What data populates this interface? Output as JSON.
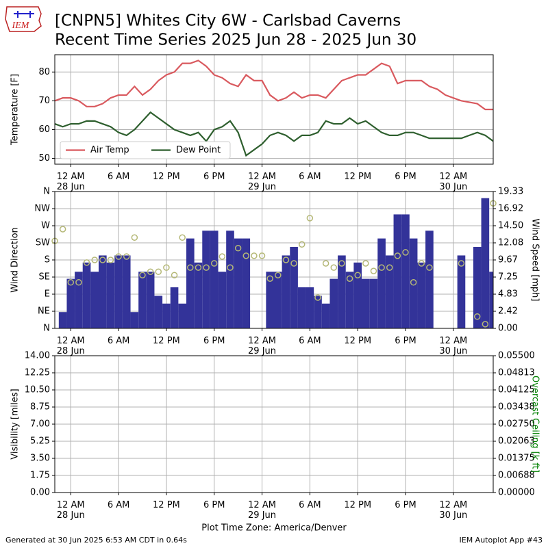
{
  "logo": "IEM",
  "title": "[CNPN5] Whites City 6W - Carlsbad Caverns",
  "subtitle": "Recent Time Series 2025 Jun 28 - 2025 Jun 30",
  "footer": {
    "left": "Generated at 30 Jun 2025 6:53 AM CDT in 0.64s",
    "right": "IEM Autoplot App #43"
  },
  "chart_data": [
    {
      "type": "line",
      "ylabel": "Temperature [F]",
      "grid": true,
      "legend": "lower left",
      "xlim": [
        -2,
        53
      ],
      "ylim": [
        48,
        86
      ],
      "yticks": [
        50,
        60,
        70,
        80
      ],
      "xticks": [
        {
          "value": 0,
          "label": "12 AM\n28 Jun"
        },
        {
          "value": 6,
          "label": "6 AM"
        },
        {
          "value": 12,
          "label": "12 PM"
        },
        {
          "value": 18,
          "label": "6 PM"
        },
        {
          "value": 24,
          "label": "12 AM\n29 Jun"
        },
        {
          "value": 30,
          "label": "6 AM"
        },
        {
          "value": 36,
          "label": "12 PM"
        },
        {
          "value": 42,
          "label": "6 PM"
        },
        {
          "value": 48,
          "label": "12 AM\n30 Jun"
        }
      ],
      "x": [
        -2,
        -1,
        0,
        1,
        2,
        3,
        4,
        5,
        6,
        7,
        8,
        9,
        10,
        11,
        12,
        13,
        14,
        15,
        16,
        17,
        18,
        19,
        20,
        21,
        22,
        23,
        24,
        25,
        26,
        27,
        28,
        29,
        30,
        31,
        32,
        33,
        34,
        35,
        36,
        37,
        38,
        39,
        40,
        41,
        42,
        43,
        44,
        45,
        46,
        47,
        48,
        49,
        50,
        51,
        52,
        53
      ],
      "series": [
        {
          "name": "Air Temp",
          "color": "#d9595e",
          "values": [
            70,
            71,
            71,
            70,
            68,
            68,
            69,
            71,
            72,
            72,
            75,
            72,
            74,
            77,
            79,
            80,
            83,
            83,
            84,
            82,
            79,
            78,
            76,
            75,
            79,
            77,
            77,
            72,
            70,
            71,
            73,
            71,
            72,
            72,
            71,
            74,
            77,
            78,
            79,
            79,
            81,
            83,
            82,
            76,
            77,
            77,
            77,
            75,
            74,
            72,
            71,
            70,
            69.5,
            69,
            67,
            67
          ]
        },
        {
          "name": "Dew Point",
          "color": "#2e5f2e",
          "values": [
            62,
            61,
            62,
            62,
            63,
            63,
            62,
            61,
            59,
            58,
            60,
            63,
            66,
            64,
            62,
            60,
            59,
            58,
            59,
            56,
            60,
            61,
            63,
            59,
            51,
            53,
            55,
            58,
            59,
            58,
            56,
            58,
            58,
            59,
            63,
            62,
            62,
            64,
            62,
            63,
            61,
            59,
            58,
            58,
            59,
            59,
            58,
            57,
            57,
            57,
            57,
            57,
            58,
            59,
            58,
            56
          ]
        }
      ]
    },
    {
      "type": "bar",
      "ylabel": "Wind Direction",
      "y2label": "Wind Speed [mph]",
      "grid": true,
      "xlim": [
        -2,
        53
      ],
      "ylim": [
        0,
        360
      ],
      "yticks": [
        {
          "value": 0,
          "label": "N"
        },
        {
          "value": 45,
          "label": "NE"
        },
        {
          "value": 90,
          "label": "E"
        },
        {
          "value": 135,
          "label": "SE"
        },
        {
          "value": 180,
          "label": "S"
        },
        {
          "value": 225,
          "label": "SW"
        },
        {
          "value": 270,
          "label": "W"
        },
        {
          "value": 315,
          "label": "NW"
        },
        {
          "value": 360,
          "label": "N"
        }
      ],
      "y2lim": [
        0,
        19.33
      ],
      "y2ticks": [
        {
          "value": 0,
          "label": "0.00"
        },
        {
          "value": 2.41625,
          "label": "2.42"
        },
        {
          "value": 4.8325,
          "label": "4.83"
        },
        {
          "value": 7.24875,
          "label": "7.25"
        },
        {
          "value": 9.665,
          "label": "9.67"
        },
        {
          "value": 12.08125,
          "label": "12.08"
        },
        {
          "value": 14.4975,
          "label": "14.50"
        },
        {
          "value": 16.91375,
          "label": "16.92"
        },
        {
          "value": 19.33,
          "label": "19.33"
        }
      ],
      "xticks": [
        {
          "value": 0,
          "label": "12 AM\n28 Jun"
        },
        {
          "value": 6,
          "label": "6 AM"
        },
        {
          "value": 12,
          "label": "12 PM"
        },
        {
          "value": 18,
          "label": "6 PM"
        },
        {
          "value": 24,
          "label": "12 AM\n29 Jun"
        },
        {
          "value": 30,
          "label": "6 AM"
        },
        {
          "value": 36,
          "label": "12 PM"
        },
        {
          "value": 42,
          "label": "6 PM"
        },
        {
          "value": 48,
          "label": "12 AM\n30 Jun"
        }
      ],
      "x": [
        -2,
        -1,
        0,
        1,
        2,
        3,
        4,
        5,
        6,
        7,
        8,
        9,
        10,
        11,
        12,
        13,
        14,
        15,
        16,
        17,
        18,
        19,
        20,
        21,
        22,
        23,
        24,
        25,
        26,
        27,
        28,
        29,
        30,
        31,
        32,
        33,
        34,
        35,
        36,
        37,
        38,
        39,
        40,
        41,
        42,
        43,
        44,
        45,
        46,
        47,
        48,
        49,
        50,
        51,
        52,
        53
      ],
      "series": [
        {
          "type": "bar",
          "axis": "y2",
          "color": "#333399",
          "values": [
            null,
            2.3,
            7,
            8,
            9.3,
            8,
            10.3,
            9.3,
            10.3,
            10.3,
            2.3,
            8,
            8,
            4.6,
            3.5,
            5.8,
            3.5,
            12.7,
            9.3,
            13.8,
            13.8,
            8,
            13.8,
            12.7,
            12.7,
            null,
            null,
            8,
            8,
            10.3,
            11.5,
            5.8,
            5.8,
            4.6,
            3.5,
            7,
            10.3,
            8,
            9.3,
            7,
            7,
            12.7,
            10.3,
            16.1,
            16.1,
            12.7,
            9.3,
            13.8,
            null,
            null,
            null,
            10.3,
            null,
            11.5,
            18.4,
            8
          ]
        },
        {
          "type": "scatter",
          "color": "#b5b877",
          "values": [
            230,
            261,
            121,
            121,
            173,
            180,
            180,
            180,
            189,
            189,
            239,
            140,
            149,
            149,
            160,
            140,
            239,
            160,
            160,
            160,
            171,
            189,
            160,
            211,
            191,
            191,
            191,
            131,
            140,
            180,
            171,
            221,
            290,
            81,
            171,
            160,
            171,
            131,
            140,
            171,
            151,
            160,
            160,
            191,
            200,
            121,
            171,
            160,
            null,
            null,
            null,
            171,
            null,
            31,
            11,
            329
          ]
        }
      ]
    },
    {
      "type": "line",
      "ylabel": "Visibility [miles]",
      "y2label": "Overcast Ceiling [k ft]",
      "y2label_color": "#008000",
      "xlabel": "Plot Time Zone: America/Denver",
      "grid": true,
      "xlim": [
        -2,
        53
      ],
      "ylim": [
        0,
        14
      ],
      "yticks": [
        {
          "value": 0,
          "label": "0.00"
        },
        {
          "value": 1.75,
          "label": "1.75"
        },
        {
          "value": 3.5,
          "label": "3.50"
        },
        {
          "value": 5.25,
          "label": "5.25"
        },
        {
          "value": 7,
          "label": "7.00"
        },
        {
          "value": 8.75,
          "label": "8.75"
        },
        {
          "value": 10.5,
          "label": "10.50"
        },
        {
          "value": 12.25,
          "label": "12.25"
        },
        {
          "value": 14,
          "label": "14.00"
        }
      ],
      "y2lim": [
        0,
        0.055
      ],
      "y2ticks": [
        {
          "value": 0,
          "label": "0.00000"
        },
        {
          "value": 0.006875,
          "label": "0.00688"
        },
        {
          "value": 0.01375,
          "label": "0.01375"
        },
        {
          "value": 0.020625,
          "label": "0.02063"
        },
        {
          "value": 0.0275,
          "label": "0.02750"
        },
        {
          "value": 0.034375,
          "label": "0.03438"
        },
        {
          "value": 0.04125,
          "label": "0.04125"
        },
        {
          "value": 0.048125,
          "label": "0.04813"
        },
        {
          "value": 0.055,
          "label": "0.05500"
        }
      ],
      "xticks": [
        {
          "value": 0,
          "label": "12 AM\n28 Jun"
        },
        {
          "value": 6,
          "label": "6 AM"
        },
        {
          "value": 12,
          "label": "12 PM"
        },
        {
          "value": 18,
          "label": "6 PM"
        },
        {
          "value": 24,
          "label": "12 AM\n29 Jun"
        },
        {
          "value": 30,
          "label": "6 AM"
        },
        {
          "value": 36,
          "label": "12 PM"
        },
        {
          "value": 42,
          "label": "6 PM"
        },
        {
          "value": 48,
          "label": "12 AM\n30 Jun"
        }
      ]
    }
  ]
}
